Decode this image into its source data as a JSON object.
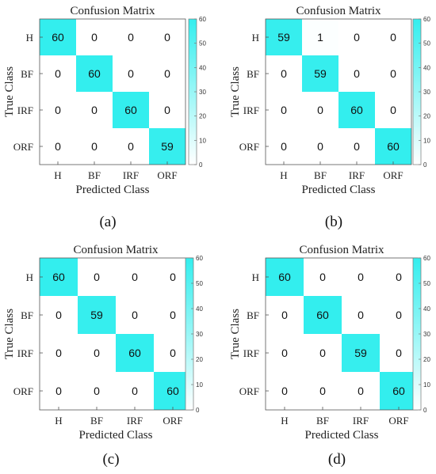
{
  "chart_data": [
    {
      "type": "heatmap",
      "panel_label": "(a)",
      "title": "Confusion Matrix",
      "xlabel": "Predicted Class",
      "ylabel": "True Class",
      "rows": [
        "H",
        "BF",
        "IRF",
        "ORF"
      ],
      "columns": [
        "H",
        "BF",
        "IRF",
        "ORF"
      ],
      "matrix": [
        [
          60,
          0,
          0,
          0
        ],
        [
          0,
          60,
          0,
          0
        ],
        [
          0,
          0,
          60,
          0
        ],
        [
          0,
          0,
          0,
          59
        ]
      ],
      "colorbar_ticks": [
        0,
        10,
        20,
        30,
        40,
        50,
        60
      ],
      "colorbar_range": [
        0,
        60
      ],
      "colormap": [
        "#ffffff",
        "#33eeee"
      ]
    },
    {
      "type": "heatmap",
      "panel_label": "(b)",
      "title": "Confusion Matrix",
      "xlabel": "Predicted Class",
      "ylabel": "True Class",
      "rows": [
        "H",
        "BF",
        "IRF",
        "ORF"
      ],
      "columns": [
        "H",
        "BF",
        "IRF",
        "ORF"
      ],
      "matrix": [
        [
          59,
          1,
          0,
          0
        ],
        [
          0,
          59,
          0,
          0
        ],
        [
          0,
          0,
          60,
          0
        ],
        [
          0,
          0,
          0,
          60
        ]
      ],
      "colorbar_ticks": [
        0,
        10,
        20,
        30,
        40,
        50,
        60
      ],
      "colorbar_range": [
        0,
        60
      ],
      "colormap": [
        "#ffffff",
        "#33eeee"
      ]
    },
    {
      "type": "heatmap",
      "panel_label": "(c)",
      "title": "Confusion Matrix",
      "xlabel": "Predicted Class",
      "ylabel": "True Class",
      "rows": [
        "H",
        "BF",
        "IRF",
        "ORF"
      ],
      "columns": [
        "H",
        "BF",
        "IRF",
        "ORF"
      ],
      "matrix": [
        [
          60,
          0,
          0,
          0
        ],
        [
          0,
          59,
          0,
          0
        ],
        [
          0,
          0,
          60,
          0
        ],
        [
          0,
          0,
          0,
          60
        ]
      ],
      "colorbar_ticks": [
        0,
        10,
        20,
        30,
        40,
        50,
        60
      ],
      "colorbar_range": [
        0,
        60
      ],
      "colormap": [
        "#ffffff",
        "#33eeee"
      ]
    },
    {
      "type": "heatmap",
      "panel_label": "(d)",
      "title": "Confusion Matrix",
      "xlabel": "Predicted Class",
      "ylabel": "True Class",
      "rows": [
        "H",
        "BF",
        "IRF",
        "ORF"
      ],
      "columns": [
        "H",
        "BF",
        "IRF",
        "ORF"
      ],
      "matrix": [
        [
          60,
          0,
          0,
          0
        ],
        [
          0,
          60,
          0,
          0
        ],
        [
          0,
          0,
          59,
          0
        ],
        [
          0,
          0,
          0,
          60
        ]
      ],
      "colorbar_ticks": [
        0,
        10,
        20,
        30,
        40,
        50,
        60
      ],
      "colorbar_range": [
        0,
        60
      ],
      "colormap": [
        "#ffffff",
        "#33eeee"
      ]
    }
  ]
}
